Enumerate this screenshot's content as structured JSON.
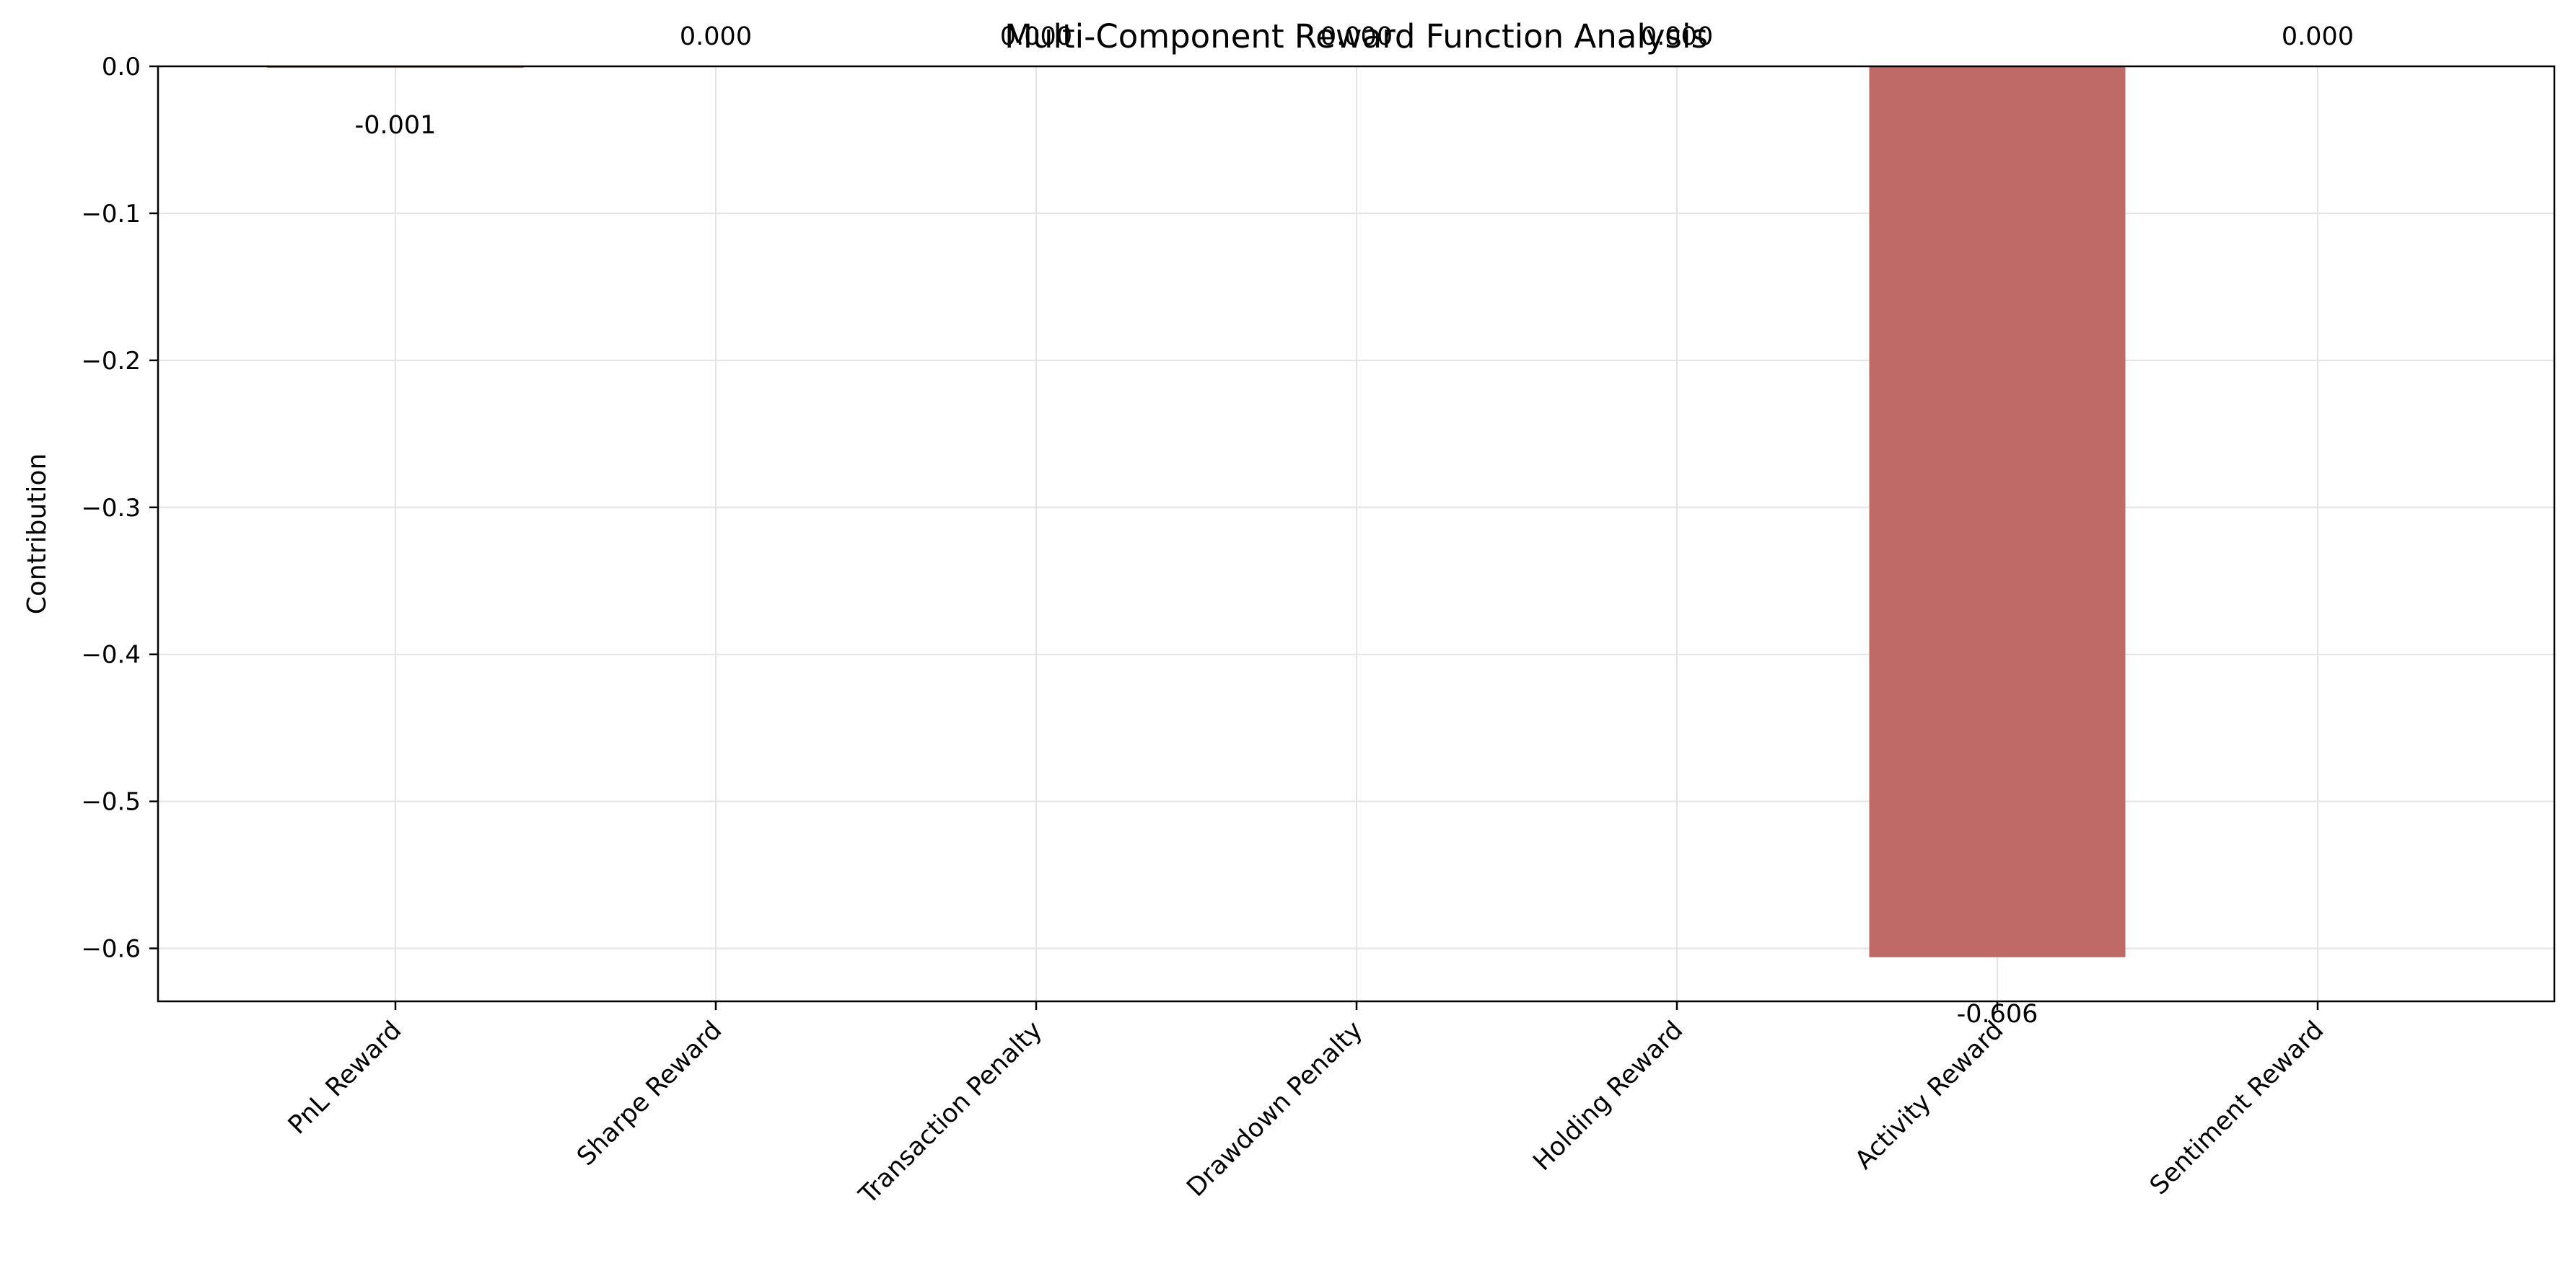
{
  "chart_data": {
    "type": "bar",
    "title": "Multi-Component Reward Function Analysis",
    "xlabel": "",
    "ylabel": "Contribution",
    "categories": [
      "PnL Reward",
      "Sharpe Reward",
      "Transaction Penalty",
      "Drawdown Penalty",
      "Holding Reward",
      "Activity Reward",
      "Sentiment Reward"
    ],
    "values": [
      -0.001,
      0.0,
      0.0,
      0.0,
      0.0,
      -0.606,
      0.0
    ],
    "data_labels": [
      "-0.001",
      "0.000",
      "0.000",
      "0.000",
      "0.000",
      "-0.606",
      "0.000"
    ],
    "yticks": [
      0.0,
      -0.1,
      -0.2,
      -0.3,
      -0.4,
      -0.5,
      -0.6
    ],
    "ytick_labels": [
      "0.0",
      "−0.1",
      "−0.2",
      "−0.3",
      "−0.4",
      "−0.5",
      "−0.6"
    ],
    "ylim": [
      -0.636,
      0.0
    ],
    "grid": true,
    "colors": {
      "bar": "#c06a67",
      "grid": "#e3e3e3",
      "axis": "#000000"
    }
  }
}
